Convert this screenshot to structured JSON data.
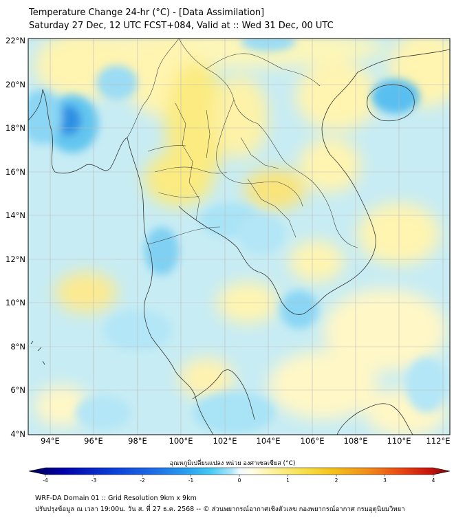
{
  "header": {
    "title_line1": "Temperature Change 24-hr (°C) - [Data Assimilation]",
    "title_line2": "Saturday 27 Dec, 12 UTC FCST+084, Valid at :: Wed 31 Dec, 00 UTC"
  },
  "map": {
    "lat_labels": [
      "22°N",
      "20°N",
      "18°N",
      "16°N",
      "14°N",
      "12°N",
      "10°N",
      "8°N",
      "6°N",
      "4°N"
    ],
    "lon_labels": [
      "94°E",
      "96°E",
      "98°E",
      "100°E",
      "102°E",
      "104°E",
      "106°E",
      "108°E",
      "110°E",
      "112°E"
    ]
  },
  "colorbar": {
    "title": "อุณหภูมิเปลี่ยนแปลง หน่วย องศาเซลเซียส (°C)",
    "ticks": [
      "-4",
      "-3",
      "-2",
      "-1",
      "0",
      "1",
      "2",
      "3",
      "4"
    ],
    "min": -4,
    "max": 4,
    "colors": [
      "#00004d",
      "#0000a8",
      "#0b3fd6",
      "#1e6fe6",
      "#2aa2f0",
      "#43c9f5",
      "#a9e6f7",
      "#eefafc",
      "#fffce6",
      "#fdf19a",
      "#f7e04c",
      "#f4c31c",
      "#f2901a",
      "#ea4a12",
      "#c8160d",
      "#7a0a0a"
    ]
  },
  "footer": {
    "line1": "WRF-DA Domain 01 :: Grid Resolution 9km x 9km",
    "line2": "ปรับปรุงข้อมูล ณ เวลา 19:00น. วัน ส. ที่ 27 ธ.ค. 2568 -- © ส่วนพยากรณ์อากาศเชิงตัวเลข กองพยากรณ์อากาศ กรมอุตุนิยมวิทยา"
  }
}
